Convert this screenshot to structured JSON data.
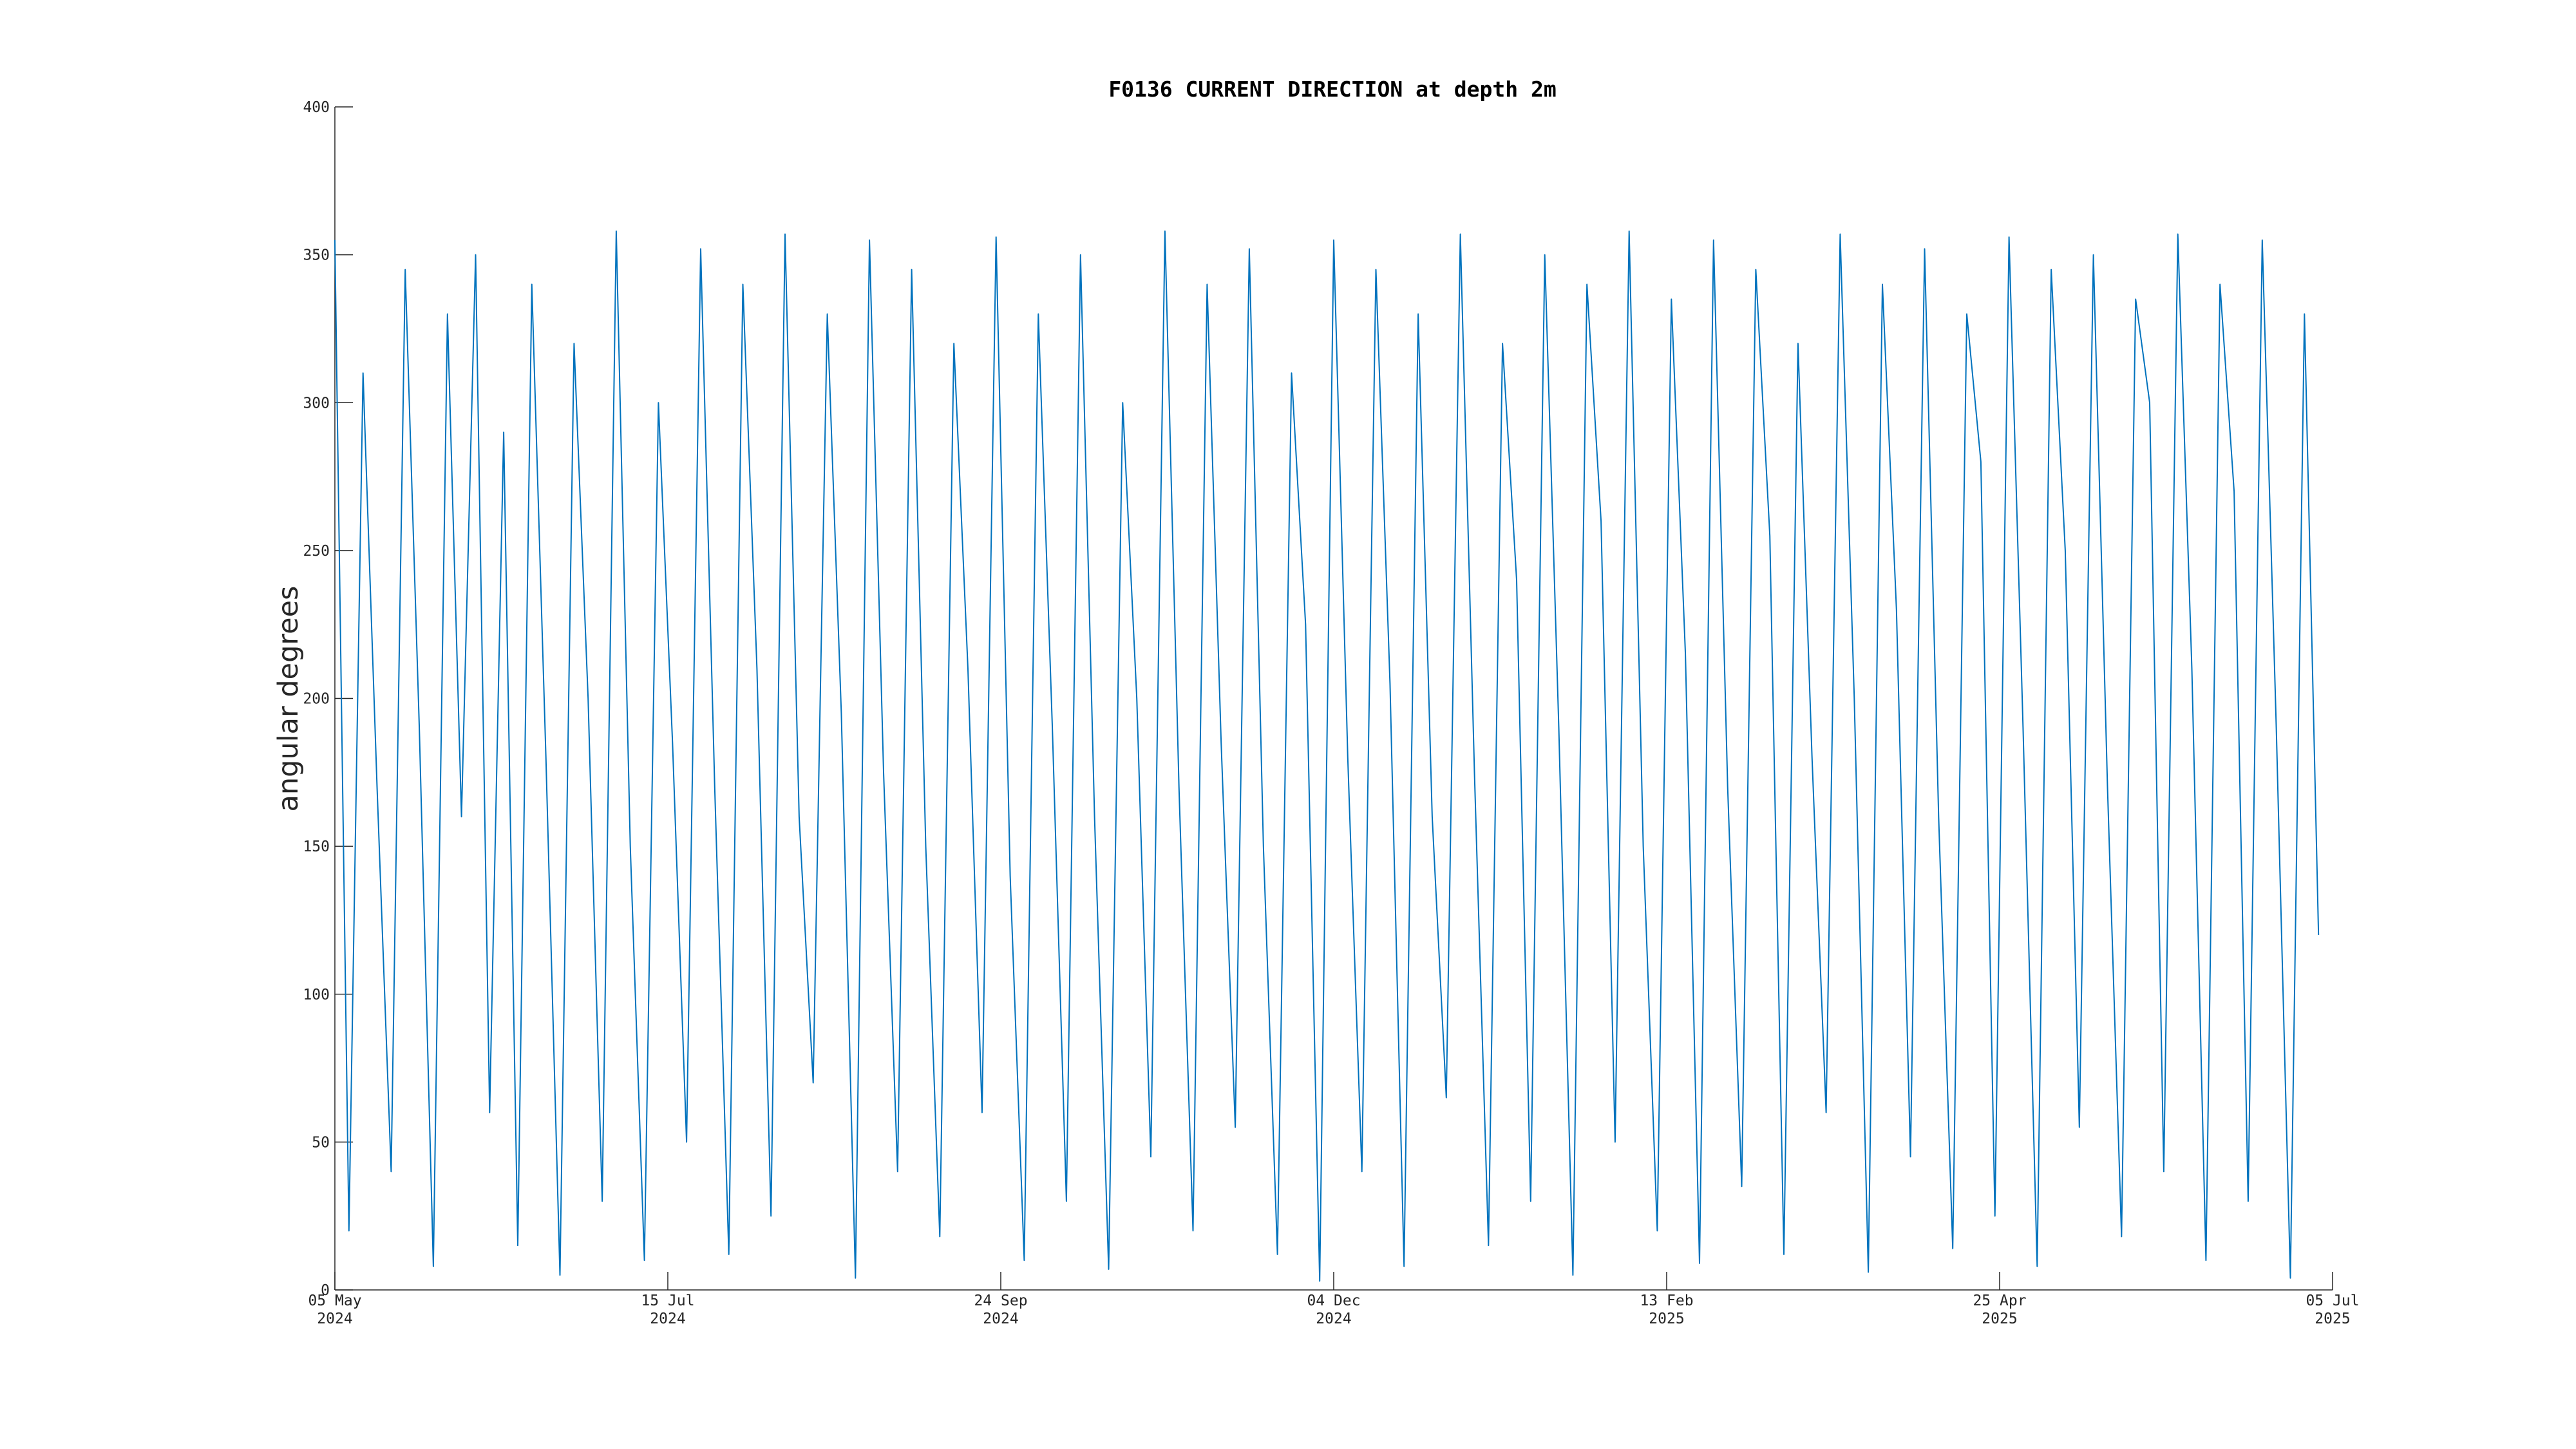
{
  "chart_data": {
    "type": "line",
    "title": "F0136 CURRENT DIRECTION at depth 2m",
    "y_label": "angular degrees",
    "x": [
      "2024-05-05",
      "2024-05-08",
      "2024-05-11",
      "2024-05-14",
      "2024-05-17",
      "2024-05-20",
      "2024-05-23",
      "2024-05-26",
      "2024-05-29",
      "2024-06-01",
      "2024-06-04",
      "2024-06-07",
      "2024-06-10",
      "2024-06-13",
      "2024-06-16",
      "2024-06-19",
      "2024-06-22",
      "2024-06-25",
      "2024-06-28",
      "2024-07-01",
      "2024-07-04",
      "2024-07-07",
      "2024-07-10",
      "2024-07-13",
      "2024-07-16",
      "2024-07-19",
      "2024-07-22",
      "2024-07-25",
      "2024-07-28",
      "2024-07-31",
      "2024-08-03",
      "2024-08-06",
      "2024-08-09",
      "2024-08-12",
      "2024-08-15",
      "2024-08-18",
      "2024-08-21",
      "2024-08-24",
      "2024-08-27",
      "2024-08-30",
      "2024-09-02",
      "2024-09-05",
      "2024-09-08",
      "2024-09-11",
      "2024-09-14",
      "2024-09-17",
      "2024-09-20",
      "2024-09-23",
      "2024-09-26",
      "2024-09-29",
      "2024-10-02",
      "2024-10-05",
      "2024-10-08",
      "2024-10-11",
      "2024-10-14",
      "2024-10-17",
      "2024-10-20",
      "2024-10-23",
      "2024-10-26",
      "2024-10-29",
      "2024-11-01",
      "2024-11-04",
      "2024-11-07",
      "2024-11-10",
      "2024-11-13",
      "2024-11-16",
      "2024-11-19",
      "2024-11-22",
      "2024-11-25",
      "2024-11-28",
      "2024-12-01",
      "2024-12-04",
      "2024-12-07",
      "2024-12-10",
      "2024-12-13",
      "2024-12-16",
      "2024-12-19",
      "2024-12-22",
      "2024-12-25",
      "2024-12-28",
      "2024-12-31",
      "2025-01-03",
      "2025-01-06",
      "2025-01-09",
      "2025-01-12",
      "2025-01-15",
      "2025-01-18",
      "2025-01-21",
      "2025-01-24",
      "2025-01-27",
      "2025-01-30",
      "2025-02-02",
      "2025-02-05",
      "2025-02-08",
      "2025-02-11",
      "2025-02-14",
      "2025-02-17",
      "2025-02-20",
      "2025-02-23",
      "2025-02-26",
      "2025-03-01",
      "2025-03-04",
      "2025-03-07",
      "2025-03-10",
      "2025-03-13",
      "2025-03-16",
      "2025-03-19",
      "2025-03-22",
      "2025-03-25",
      "2025-03-28",
      "2025-03-31",
      "2025-04-03",
      "2025-04-06",
      "2025-04-09",
      "2025-04-12",
      "2025-04-15",
      "2025-04-18",
      "2025-04-21",
      "2025-04-24",
      "2025-04-27",
      "2025-04-30",
      "2025-05-03",
      "2025-05-06",
      "2025-05-09",
      "2025-05-12",
      "2025-05-15",
      "2025-05-18",
      "2025-05-21",
      "2025-05-24",
      "2025-05-27",
      "2025-05-30",
      "2025-06-02",
      "2025-06-05",
      "2025-06-08",
      "2025-06-11",
      "2025-06-14",
      "2025-06-17",
      "2025-06-20",
      "2025-06-23",
      "2025-06-26",
      "2025-06-29",
      "2025-07-02"
    ],
    "series": [
      {
        "color": "#0072bd",
        "values": [
          355,
          20,
          310,
          170,
          40,
          345,
          190,
          8,
          330,
          160,
          350,
          60,
          290,
          15,
          340,
          180,
          5,
          320,
          200,
          30,
          358,
          150,
          10,
          300,
          185,
          50,
          352,
          170,
          12,
          340,
          210,
          25,
          357,
          160,
          70,
          330,
          195,
          4,
          355,
          175,
          40,
          345,
          150,
          18,
          320,
          210,
          60,
          356,
          140,
          10,
          330,
          190,
          30,
          350,
          160,
          7,
          300,
          200,
          45,
          358,
          170,
          20,
          340,
          185,
          55,
          352,
          150,
          12,
          310,
          225,
          3,
          355,
          180,
          40,
          345,
          205,
          8,
          330,
          160,
          65,
          357,
          175,
          15,
          320,
          240,
          30,
          350,
          190,
          5,
          340,
          260,
          50,
          358,
          150,
          20,
          335,
          215,
          9,
          355,
          170,
          35,
          345,
          255,
          12,
          320,
          180,
          60,
          357,
          200,
          6,
          340,
          230,
          45,
          352,
          160,
          14,
          330,
          280,
          25,
          356,
          190,
          8,
          345,
          250,
          55,
          350,
          170,
          18,
          335,
          300,
          40,
          357,
          210,
          10,
          340,
          270,
          30,
          355,
          190,
          4,
          330,
          120
        ]
      }
    ],
    "xlim": [
      "2024-05-05",
      "2025-07-05"
    ],
    "xticks": [
      {
        "value": "2024-05-05",
        "label": [
          "05 May",
          "2024"
        ]
      },
      {
        "value": "2024-07-15",
        "label": [
          "15 Jul",
          "2024"
        ]
      },
      {
        "value": "2024-09-24",
        "label": [
          "24 Sep",
          "2024"
        ]
      },
      {
        "value": "2024-12-04",
        "label": [
          "04 Dec",
          "2024"
        ]
      },
      {
        "value": "2025-02-13",
        "label": [
          "13 Feb",
          "2025"
        ]
      },
      {
        "value": "2025-04-25",
        "label": [
          "25 Apr",
          "2025"
        ]
      },
      {
        "value": "2025-07-05",
        "label": [
          "05 Jul",
          "2025"
        ]
      }
    ],
    "ylim": [
      0,
      400
    ],
    "yticks": [
      0,
      50,
      100,
      150,
      200,
      250,
      300,
      350,
      400
    ]
  }
}
